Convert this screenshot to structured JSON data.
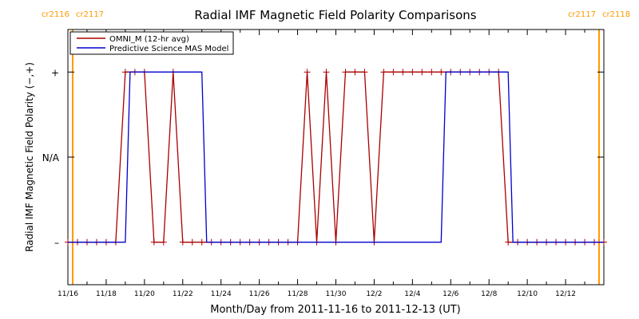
{
  "chart_data": {
    "type": "line",
    "title": "Radial IMF Magnetic Field Polarity Comparisons",
    "xlabel": "Month/Day from 2011-11-16 to 2011-12-13 (UT)",
    "ylabel": "Radial IMF Magnetic Field Polarity (−,+)",
    "xlim": [
      "2011-11-16T00:00",
      "2011-12-14T00:00"
    ],
    "ylim": [
      -1.5,
      1.5
    ],
    "y_ticks": [
      {
        "value": 1,
        "label": "+"
      },
      {
        "value": 0,
        "label": "N/A"
      },
      {
        "value": -1,
        "label": "–"
      }
    ],
    "x_ticks": [
      {
        "x": "2011-11-16",
        "label": "11/16"
      },
      {
        "x": "2011-11-18",
        "label": "11/18"
      },
      {
        "x": "2011-11-20",
        "label": "11/20"
      },
      {
        "x": "2011-11-22",
        "label": "11/22"
      },
      {
        "x": "2011-11-24",
        "label": "11/24"
      },
      {
        "x": "2011-11-26",
        "label": "11/26"
      },
      {
        "x": "2011-11-28",
        "label": "11/28"
      },
      {
        "x": "2011-11-30",
        "label": "11/30"
      },
      {
        "x": "2011-12-02",
        "label": "12/2"
      },
      {
        "x": "2011-12-04",
        "label": "12/4"
      },
      {
        "x": "2011-12-06",
        "label": "12/6"
      },
      {
        "x": "2011-12-08",
        "label": "12/8"
      },
      {
        "x": "2011-12-10",
        "label": "12/10"
      },
      {
        "x": "2011-12-12",
        "label": "12/12"
      }
    ],
    "rotation_markers": [
      {
        "x": "2011-11-16T06:00",
        "left_label": "cr2116",
        "right_label": "cr2117",
        "color": "#ff9900"
      },
      {
        "x": "2011-12-13T18:00",
        "left_label": "cr2117",
        "right_label": "cr2118",
        "color": "#ff9900"
      }
    ],
    "legend_position": "top-left",
    "grid": false,
    "series": [
      {
        "name": "OMNI_M (12-hr avg)",
        "color": "#aa0000",
        "markers": "plus",
        "points": [
          [
            "2011-11-16T00:00",
            -1
          ],
          [
            "2011-11-16T12:00",
            -1
          ],
          [
            "2011-11-17T00:00",
            -1
          ],
          [
            "2011-11-17T12:00",
            -1
          ],
          [
            "2011-11-18T00:00",
            -1
          ],
          [
            "2011-11-18T12:00",
            -1
          ],
          [
            "2011-11-19T00:00",
            1
          ],
          [
            "2011-11-19T12:00",
            1
          ],
          [
            "2011-11-20T00:00",
            1
          ],
          [
            "2011-11-20T12:00",
            -1
          ],
          [
            "2011-11-21T00:00",
            -1
          ],
          [
            "2011-11-21T12:00",
            1
          ],
          [
            "2011-11-22T00:00",
            -1
          ],
          [
            "2011-11-22T12:00",
            -1
          ],
          [
            "2011-11-23T00:00",
            -1
          ],
          [
            "2011-11-23T12:00",
            -1
          ],
          [
            "2011-11-24T00:00",
            -1
          ],
          [
            "2011-11-24T12:00",
            -1
          ],
          [
            "2011-11-25T00:00",
            -1
          ],
          [
            "2011-11-25T12:00",
            -1
          ],
          [
            "2011-11-26T00:00",
            -1
          ],
          [
            "2011-11-26T12:00",
            -1
          ],
          [
            "2011-11-27T00:00",
            -1
          ],
          [
            "2011-11-27T12:00",
            -1
          ],
          [
            "2011-11-28T00:00",
            -1
          ],
          [
            "2011-11-28T12:00",
            1
          ],
          [
            "2011-11-29T00:00",
            -1
          ],
          [
            "2011-11-29T12:00",
            1
          ],
          [
            "2011-11-30T00:00",
            -1
          ],
          [
            "2011-11-30T12:00",
            1
          ],
          [
            "2011-12-01T00:00",
            1
          ],
          [
            "2011-12-01T12:00",
            1
          ],
          [
            "2011-12-02T00:00",
            -1
          ],
          [
            "2011-12-02T12:00",
            1
          ],
          [
            "2011-12-03T00:00",
            1
          ],
          [
            "2011-12-03T12:00",
            1
          ],
          [
            "2011-12-04T00:00",
            1
          ],
          [
            "2011-12-04T12:00",
            1
          ],
          [
            "2011-12-05T00:00",
            1
          ],
          [
            "2011-12-05T12:00",
            1
          ],
          [
            "2011-12-06T00:00",
            1
          ],
          [
            "2011-12-06T12:00",
            1
          ],
          [
            "2011-12-07T00:00",
            1
          ],
          [
            "2011-12-07T12:00",
            1
          ],
          [
            "2011-12-08T00:00",
            1
          ],
          [
            "2011-12-08T12:00",
            1
          ],
          [
            "2011-12-09T00:00",
            -1
          ],
          [
            "2011-12-09T12:00",
            -1
          ],
          [
            "2011-12-10T00:00",
            -1
          ],
          [
            "2011-12-10T12:00",
            -1
          ],
          [
            "2011-12-11T00:00",
            -1
          ],
          [
            "2011-12-11T12:00",
            -1
          ],
          [
            "2011-12-12T00:00",
            -1
          ],
          [
            "2011-12-12T12:00",
            -1
          ],
          [
            "2011-12-13T00:00",
            -1
          ],
          [
            "2011-12-13T12:00",
            -1
          ],
          [
            "2011-12-14T00:00",
            -1
          ]
        ]
      },
      {
        "name": "Predictive Science MAS Model",
        "color": "#0000cc",
        "markers": "none",
        "points": [
          [
            "2011-11-16T00:00",
            -1
          ],
          [
            "2011-11-19T00:00",
            -1
          ],
          [
            "2011-11-19T06:00",
            1
          ],
          [
            "2011-11-23T00:00",
            1
          ],
          [
            "2011-11-23T06:00",
            -1
          ],
          [
            "2011-12-05T12:00",
            -1
          ],
          [
            "2011-12-05T18:00",
            1
          ],
          [
            "2011-12-09T00:00",
            1
          ],
          [
            "2011-12-09T06:00",
            -1
          ],
          [
            "2011-12-14T00:00",
            -1
          ]
        ]
      }
    ]
  }
}
